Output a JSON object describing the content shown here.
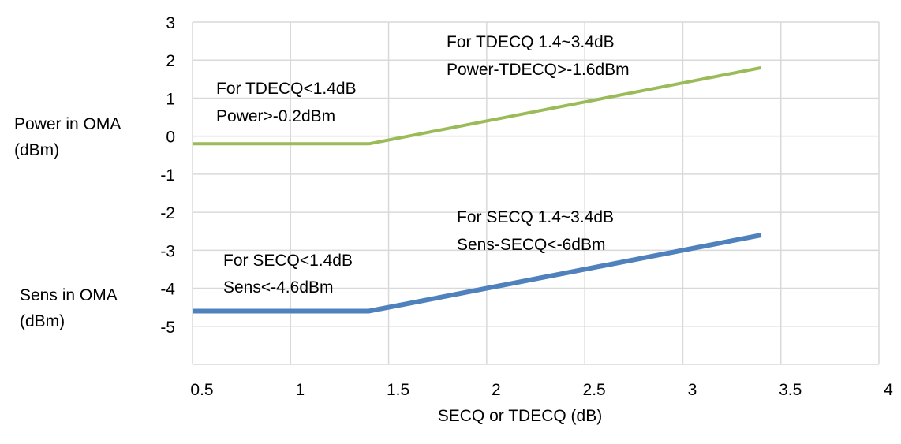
{
  "chart_data": {
    "type": "line",
    "title": "",
    "xlabel": "SECQ or TDECQ (dB)",
    "ylabel_power": [
      "Power in OMA",
      "(dBm)"
    ],
    "ylabel_sens": [
      "Sens in OMA",
      "(dBm)"
    ],
    "xlim": [
      0.5,
      4
    ],
    "ylim": [
      -6,
      3
    ],
    "x_ticks": [
      0.5,
      1,
      1.5,
      2,
      2.5,
      3,
      3.5,
      4
    ],
    "x_tick_labels": [
      "0.5",
      "1",
      "1.5",
      "2",
      "2.5",
      "3",
      "3.5",
      "4"
    ],
    "y_ticks": [
      3,
      2,
      1,
      0,
      -1,
      -2,
      -3,
      -4,
      -5
    ],
    "y_tick_labels": [
      "3",
      "2",
      "1",
      "0",
      "-1",
      "-2",
      "-3",
      "-4",
      "-5"
    ],
    "grid": true,
    "series": [
      {
        "name": "Power in OMA",
        "color": "#9BBB59",
        "x": [
          0.5,
          1.4,
          3.4
        ],
        "y": [
          -0.2,
          -0.2,
          1.8
        ]
      },
      {
        "name": "Sens in OMA",
        "color": "#4F81BD",
        "x": [
          0.5,
          1.4,
          3.4
        ],
        "y": [
          -4.6,
          -4.6,
          -2.6
        ]
      }
    ],
    "annotations": [
      {
        "lines": [
          "For TDECQ<1.4dB",
          "Power>-0.2dBm"
        ]
      },
      {
        "lines": [
          "For TDECQ 1.4~3.4dB",
          "Power-TDECQ>-1.6dBm"
        ]
      },
      {
        "lines": [
          "For SECQ<1.4dB",
          "Sens<-4.6dBm"
        ]
      },
      {
        "lines": [
          "For SECQ 1.4~3.4dB",
          "Sens-SECQ<-6dBm"
        ]
      }
    ]
  }
}
